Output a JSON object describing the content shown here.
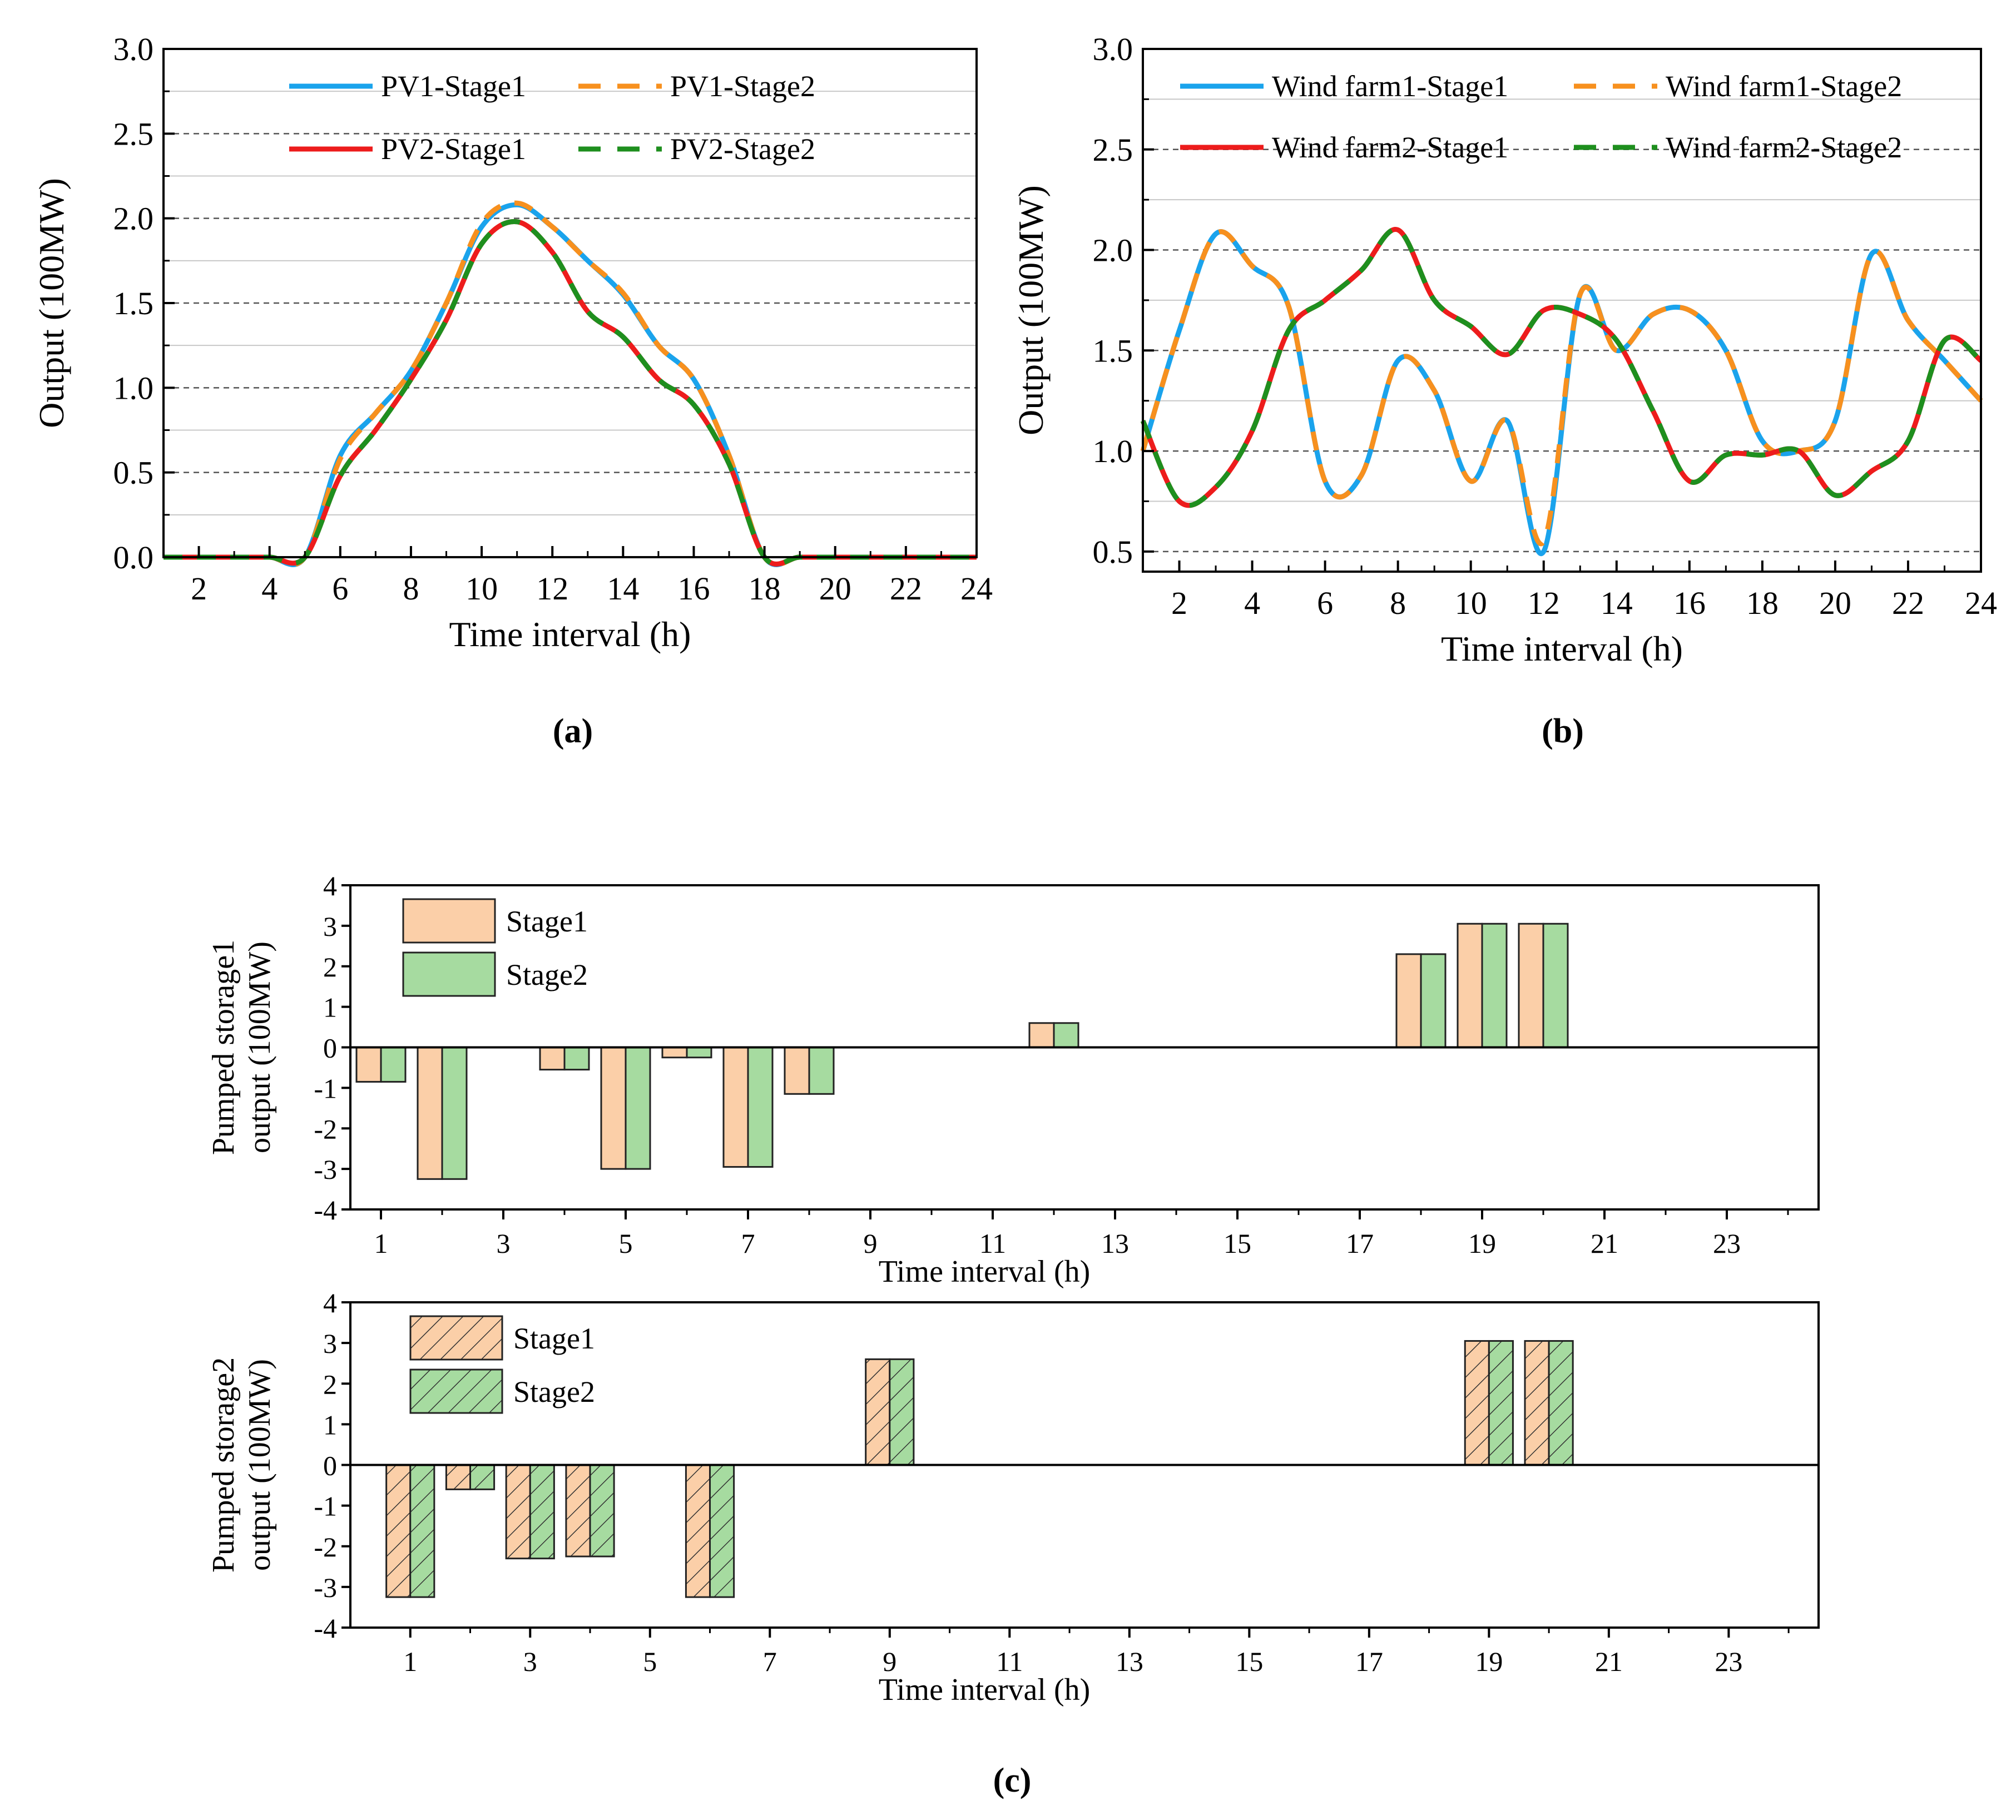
{
  "colors": {
    "pv1_s1": "#1aa3ec",
    "pv1_s2": "#f7901e",
    "pv2_s1": "#ed1c1c",
    "pv2_s2": "#1e8f1e",
    "bar_s1": "#fbcfa8",
    "bar_s2": "#a6dba0",
    "hatch": "#333333"
  },
  "chart_data": [
    {
      "type": "line",
      "panel_label": "(a)",
      "xlabel": "Time interval (h)",
      "ylabel": "Output (100MW)",
      "xlim": [
        1,
        24
      ],
      "ylim": [
        0,
        3.0
      ],
      "xticks": [
        2,
        4,
        6,
        8,
        10,
        12,
        14,
        16,
        18,
        20,
        22,
        24
      ],
      "yticks": [
        0.0,
        0.5,
        1.0,
        1.5,
        2.0,
        2.5,
        3.0
      ],
      "ytick_labels": [
        "0.0",
        "0.5",
        "1.0",
        "1.5",
        "2.0",
        "2.5",
        "3.0"
      ],
      "legend_position": "top",
      "x": [
        1,
        2,
        3,
        4,
        5,
        6,
        7,
        8,
        9,
        10,
        11,
        12,
        13,
        14,
        15,
        16,
        17,
        18,
        19,
        20,
        21,
        22,
        23,
        24
      ],
      "series": [
        {
          "name": "PV1-Stage1",
          "color_key": "pv1_s1",
          "dash": false,
          "values": [
            0,
            0,
            0,
            0,
            0,
            0.6,
            0.85,
            1.1,
            1.5,
            1.95,
            2.08,
            1.95,
            1.75,
            1.55,
            1.25,
            1.05,
            0.6,
            0,
            0,
            0,
            0,
            0,
            0,
            0
          ]
        },
        {
          "name": "PV1-Stage2",
          "color_key": "pv1_s2",
          "dash": true,
          "values": [
            0,
            0,
            0,
            0,
            0,
            0.58,
            0.85,
            1.1,
            1.5,
            1.97,
            2.09,
            1.95,
            1.75,
            1.56,
            1.25,
            1.05,
            0.6,
            0,
            0,
            0,
            0,
            0,
            0,
            0
          ]
        },
        {
          "name": "PV2-Stage1",
          "color_key": "pv2_s1",
          "dash": false,
          "values": [
            0,
            0,
            0,
            0,
            0,
            0.48,
            0.75,
            1.05,
            1.4,
            1.85,
            1.98,
            1.8,
            1.45,
            1.3,
            1.05,
            0.9,
            0.55,
            0,
            0,
            0,
            0,
            0,
            0,
            0
          ]
        },
        {
          "name": "PV2-Stage2",
          "color_key": "pv2_s2",
          "dash": true,
          "values": [
            0,
            0,
            0,
            0,
            0,
            0.48,
            0.75,
            1.05,
            1.4,
            1.85,
            1.98,
            1.8,
            1.45,
            1.3,
            1.05,
            0.9,
            0.55,
            0,
            0,
            0,
            0,
            0,
            0,
            0
          ]
        }
      ]
    },
    {
      "type": "line",
      "panel_label": "(b)",
      "xlabel": "Time interval (h)",
      "ylabel": "Output (100MW)",
      "xlim": [
        1,
        24
      ],
      "ylim": [
        0.4,
        3.0
      ],
      "xticks": [
        2,
        4,
        6,
        8,
        10,
        12,
        14,
        16,
        18,
        20,
        22,
        24
      ],
      "yticks": [
        0.5,
        1.0,
        1.5,
        2.0,
        2.5,
        3.0
      ],
      "ytick_labels": [
        "0.5",
        "1.0",
        "1.5",
        "2.0",
        "2.5",
        "3.0"
      ],
      "legend_position": "top",
      "x": [
        1,
        2,
        3,
        4,
        5,
        6,
        7,
        8,
        9,
        10,
        11,
        12,
        13,
        14,
        15,
        16,
        17,
        18,
        19,
        20,
        21,
        22,
        23,
        24
      ],
      "series": [
        {
          "name": "Wind farm1-Stage1",
          "color_key": "pv1_s1",
          "dash": false,
          "values": [
            1.0,
            1.6,
            2.08,
            1.92,
            1.72,
            0.85,
            0.88,
            1.45,
            1.3,
            0.85,
            1.15,
            0.5,
            1.78,
            1.5,
            1.68,
            1.7,
            1.5,
            1.05,
            1.0,
            1.15,
            1.98,
            1.65,
            1.45,
            1.25
          ]
        },
        {
          "name": "Wind farm1-Stage2",
          "color_key": "pv1_s2",
          "dash": true,
          "values": [
            1.0,
            1.6,
            2.08,
            1.92,
            1.72,
            0.85,
            0.88,
            1.45,
            1.3,
            0.85,
            1.15,
            0.55,
            1.78,
            1.5,
            1.68,
            1.7,
            1.5,
            1.05,
            1.0,
            1.15,
            1.98,
            1.65,
            1.45,
            1.25
          ]
        },
        {
          "name": "Wind farm2-Stage1",
          "color_key": "pv2_s1",
          "dash": false,
          "values": [
            1.15,
            0.75,
            0.82,
            1.1,
            1.6,
            1.75,
            1.9,
            2.1,
            1.75,
            1.62,
            1.48,
            1.7,
            1.68,
            1.55,
            1.2,
            0.85,
            0.98,
            0.98,
            1.0,
            0.78,
            0.9,
            1.05,
            1.55,
            1.45
          ]
        },
        {
          "name": "Wind farm2-Stage2",
          "color_key": "pv2_s2",
          "dash": true,
          "values": [
            1.15,
            0.75,
            0.82,
            1.1,
            1.6,
            1.75,
            1.9,
            2.1,
            1.75,
            1.62,
            1.48,
            1.7,
            1.68,
            1.55,
            1.2,
            0.85,
            0.98,
            0.98,
            1.0,
            0.78,
            0.9,
            1.05,
            1.55,
            1.45
          ]
        }
      ]
    },
    {
      "type": "bar",
      "panel_label": "",
      "hatched": false,
      "xlabel": "Time interval (h)",
      "ylabel_line1": "Pumped storage1",
      "ylabel_line2": "output (100MW)",
      "xlim": [
        0.5,
        24.5
      ],
      "ylim": [
        -4,
        4
      ],
      "xticks": [
        1,
        3,
        5,
        7,
        9,
        11,
        13,
        15,
        17,
        19,
        21,
        23
      ],
      "yticks": [
        -4,
        -3,
        -2,
        -1,
        0,
        1,
        2,
        3,
        4
      ],
      "legend_position": "top-left",
      "categories": [
        1,
        2,
        3,
        4,
        5,
        6,
        7,
        8,
        9,
        10,
        11,
        12,
        13,
        14,
        15,
        16,
        17,
        18,
        19,
        20,
        21,
        22,
        23,
        24
      ],
      "series": [
        {
          "name": "Stage1",
          "color_key": "bar_s1",
          "values": [
            -0.85,
            -3.25,
            0,
            -0.55,
            -3.0,
            -0.25,
            -2.95,
            -1.15,
            0,
            0,
            0,
            0.6,
            0,
            0,
            0,
            0,
            0,
            2.3,
            3.05,
            3.05,
            0,
            0,
            0,
            0
          ]
        },
        {
          "name": "Stage2",
          "color_key": "bar_s2",
          "values": [
            -0.85,
            -3.25,
            0,
            -0.55,
            -3.0,
            -0.25,
            -2.95,
            -1.15,
            0,
            0,
            0,
            0.6,
            0,
            0,
            0,
            0,
            0,
            2.3,
            3.05,
            3.05,
            0,
            0,
            0,
            0
          ]
        }
      ]
    },
    {
      "type": "bar",
      "panel_label": "(c)",
      "hatched": true,
      "xlabel": "Time interval (h)",
      "ylabel_line1": "Pumped storage2",
      "ylabel_line2": "output (100MW)",
      "xlim": [
        0,
        24.5
      ],
      "ylim": [
        -4,
        4
      ],
      "xticks": [
        1,
        3,
        5,
        7,
        9,
        11,
        13,
        15,
        17,
        19,
        21,
        23
      ],
      "yticks": [
        -4,
        -3,
        -2,
        -1,
        0,
        1,
        2,
        3,
        4
      ],
      "legend_position": "top-left",
      "categories": [
        1,
        2,
        3,
        4,
        5,
        6,
        7,
        8,
        9,
        10,
        11,
        12,
        13,
        14,
        15,
        16,
        17,
        18,
        19,
        20,
        21,
        22,
        23,
        24
      ],
      "series": [
        {
          "name": "Stage1",
          "color_key": "bar_s1",
          "values": [
            -3.25,
            -0.6,
            -2.3,
            -2.25,
            0,
            -3.25,
            0,
            0,
            2.6,
            0,
            0,
            0,
            0,
            0,
            0,
            0,
            0,
            0,
            3.05,
            3.05,
            0,
            0,
            0,
            0
          ]
        },
        {
          "name": "Stage2",
          "color_key": "bar_s2",
          "values": [
            -3.25,
            -0.6,
            -2.3,
            -2.25,
            0,
            -3.25,
            0,
            0,
            2.6,
            0,
            0,
            0,
            0,
            0,
            0,
            0,
            0,
            0,
            3.05,
            3.05,
            0,
            0,
            0,
            0
          ]
        }
      ]
    }
  ]
}
